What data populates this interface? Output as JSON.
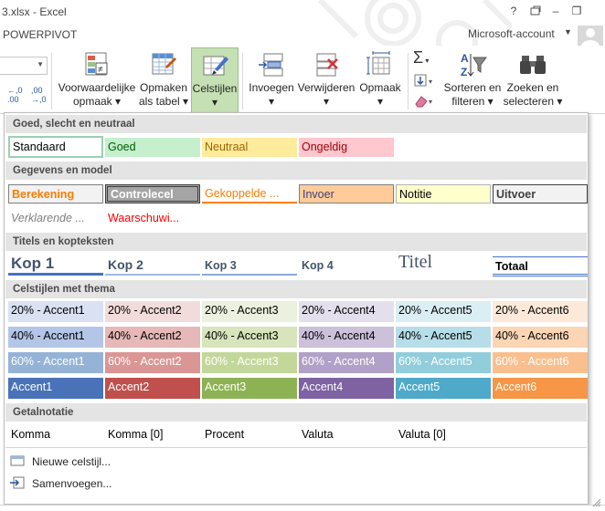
{
  "window": {
    "title": "3.xlsx - Excel",
    "help": "?",
    "restore_icon": "restore-icon",
    "minimize": "–",
    "maximize": "❐"
  },
  "tabs": {
    "powerpivot": "POWERPIVOT",
    "account": "Microsoft-account"
  },
  "ribbon": {
    "cond_format": [
      "Voorwaardelijke",
      "opmaak ▾"
    ],
    "format_table": [
      "Opmaken",
      "als tabel ▾"
    ],
    "cell_styles": [
      "Celstijlen",
      "▾"
    ],
    "insert": [
      "Invoegen",
      "▾"
    ],
    "delete": [
      "Verwijderen",
      "▾"
    ],
    "format": [
      "Opmaak",
      "▾"
    ],
    "sort": [
      "Sorteren en",
      "filteren ▾"
    ],
    "find": [
      "Zoeken en",
      "selecteren ▾"
    ],
    "colors": {
      "active_bg": "#c5e0b3"
    }
  },
  "gallery": {
    "sections": {
      "good_bad": "Goed, slecht en neutraal",
      "data_model": "Gegevens en model",
      "titles": "Titels en kopteksten",
      "themed": "Celstijlen met thema",
      "number": "Getalnotatie"
    },
    "good_bad": [
      "Standaard",
      "Goed",
      "Neutraal",
      "Ongeldig"
    ],
    "data_model_row1": [
      "Berekening",
      "Controlecel",
      "Gekoppelde ...",
      "Invoer",
      "Notitie",
      "Uitvoer"
    ],
    "data_model_row2": [
      "Verklarende ...",
      "Waarschuwi..."
    ],
    "titles": [
      "Kop 1",
      "Kop 2",
      "Kop 3",
      "Kop 4",
      "Titel",
      "Totaal"
    ],
    "themed_20": [
      "20% - Accent1",
      "20% - Accent2",
      "20% - Accent3",
      "20% - Accent4",
      "20% - Accent5",
      "20% - Accent6"
    ],
    "themed_40": [
      "40% - Accent1",
      "40% - Accent2",
      "40% - Accent3",
      "40% - Accent4",
      "40% - Accent5",
      "40% - Accent6"
    ],
    "themed_60": [
      "60% - Accent1",
      "60% - Accent2",
      "60% - Accent3",
      "60% - Accent4",
      "60% - Accent5",
      "60% - Accent6"
    ],
    "themed_100": [
      "Accent1",
      "Accent2",
      "Accent3",
      "Accent4",
      "Accent5",
      "Accent6"
    ],
    "number": [
      "Komma",
      "Komma [0]",
      "Procent",
      "Valuta",
      "Valuta [0]"
    ],
    "menu": {
      "new_style": "Nieuwe celstijl...",
      "merge": "Samenvoegen..."
    }
  }
}
